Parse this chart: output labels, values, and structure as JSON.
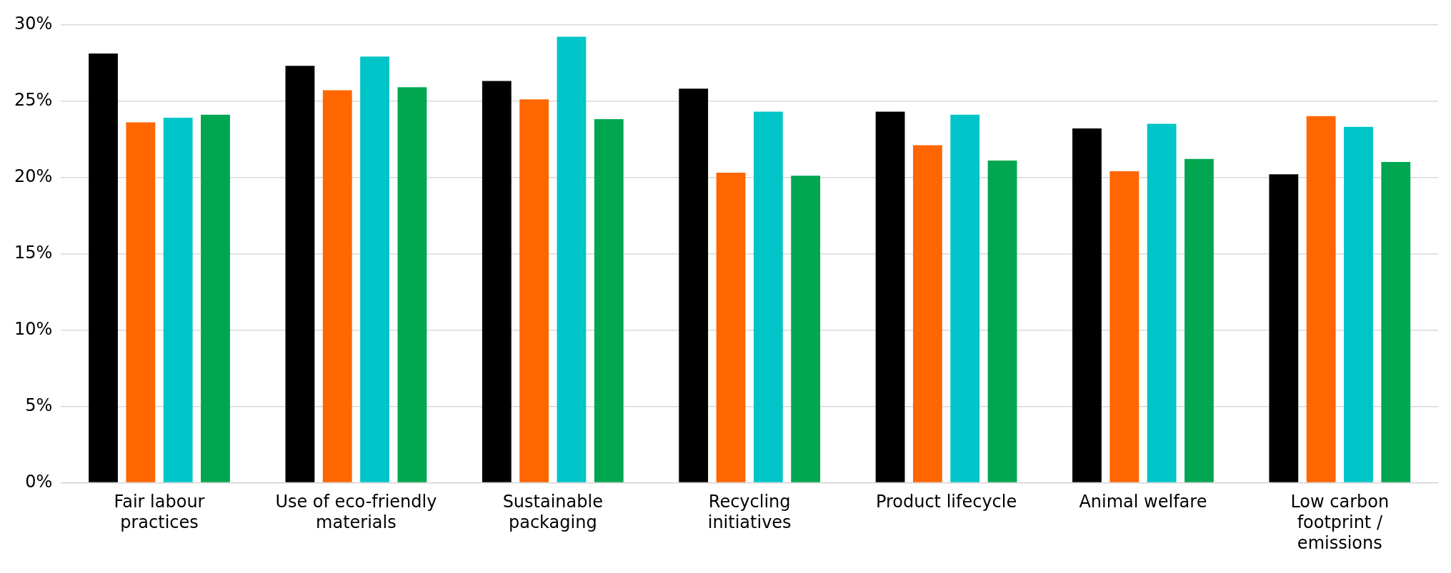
{
  "chart_data": {
    "type": "bar",
    "categories": [
      "Fair labour practices",
      "Use of eco-friendly materials",
      "Sustainable packaging",
      "Recycling initiatives",
      "Product lifecycle",
      "Animal welfare",
      "Low carbon footprint / emissions"
    ],
    "series": [
      {
        "color": "#000000",
        "values": [
          28.1,
          27.3,
          26.3,
          25.8,
          24.3,
          23.2,
          20.2
        ]
      },
      {
        "color": "#ff6600",
        "values": [
          23.6,
          25.7,
          25.1,
          20.3,
          22.1,
          20.4,
          24.0
        ]
      },
      {
        "color": "#00c5c8",
        "values": [
          23.9,
          27.9,
          29.2,
          24.3,
          24.1,
          23.5,
          23.3
        ]
      },
      {
        "color": "#00a650",
        "values": [
          24.1,
          25.9,
          23.8,
          20.1,
          21.1,
          21.2,
          21.0
        ]
      }
    ],
    "ylim": [
      0,
      30
    ],
    "yticks": [
      {
        "value": 0,
        "label": "0%"
      },
      {
        "value": 5,
        "label": "5%"
      },
      {
        "value": 10,
        "label": "10%"
      },
      {
        "value": 15,
        "label": "15%"
      },
      {
        "value": 20,
        "label": "20%"
      },
      {
        "value": 25,
        "label": "25%"
      },
      {
        "value": 30,
        "label": "30%"
      }
    ],
    "grid": "y",
    "legend": false
  }
}
